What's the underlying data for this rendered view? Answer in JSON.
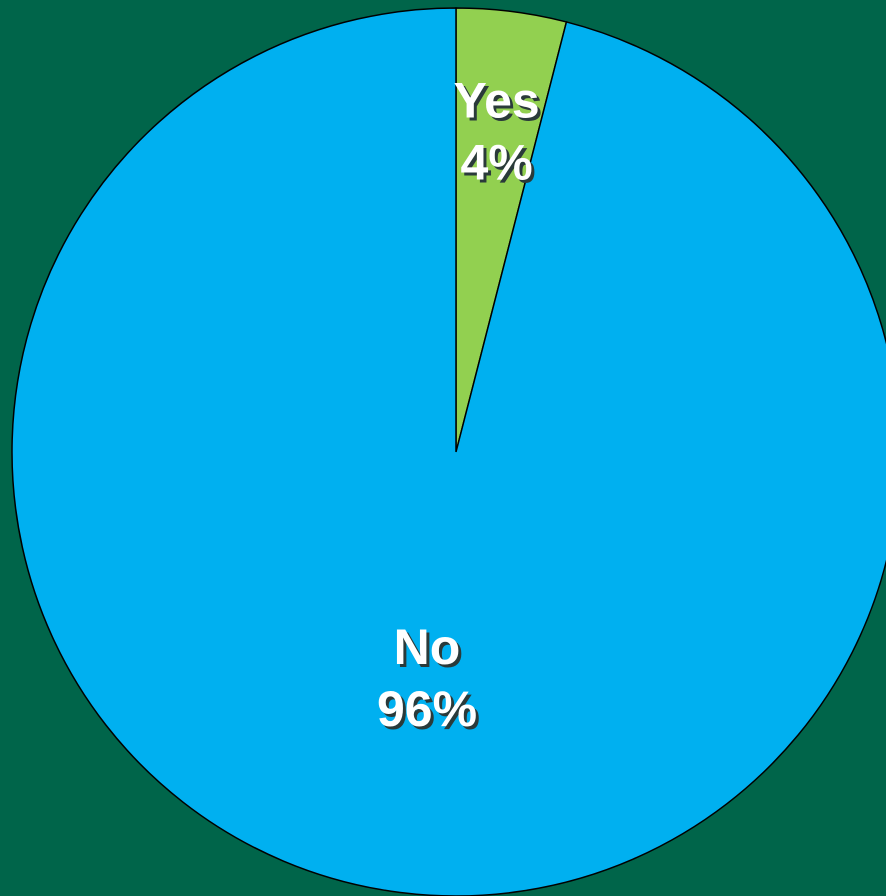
{
  "chart_data": {
    "type": "pie",
    "title": "",
    "start_angle_deg": 0,
    "direction": "clockwise",
    "slices": [
      {
        "label": "Yes",
        "value": 4,
        "value_label": "4%",
        "color": "#92d050"
      },
      {
        "label": "No",
        "value": 96,
        "value_label": "96%",
        "color": "#00b0f0"
      }
    ],
    "background_color": "#00654a",
    "border_color": "#000000",
    "label_color": "#ffffff",
    "legend": "none"
  }
}
